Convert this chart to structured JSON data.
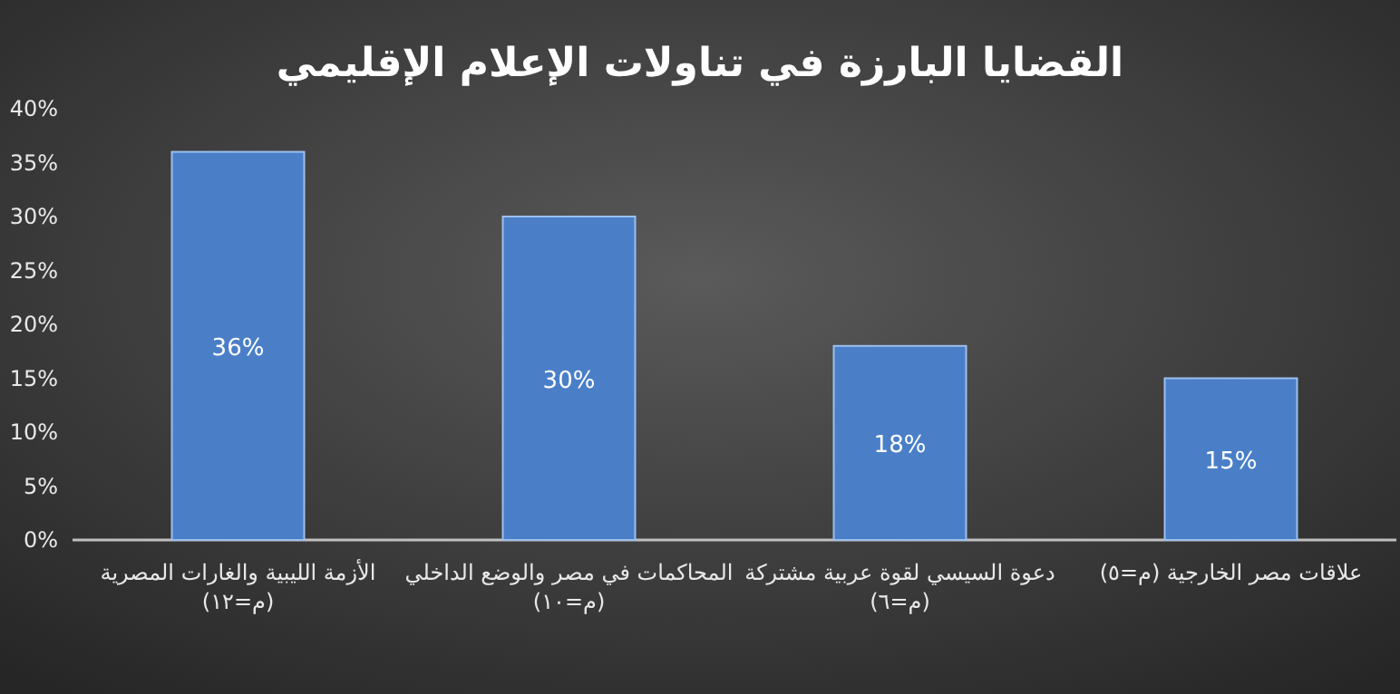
{
  "chart_data": {
    "type": "bar",
    "title": "القضايا البارزة في تناولات الإعلام الإقليمي",
    "categories": [
      "الأزمة الليبية والغارات المصرية\n(م=١٢)",
      "المحاكمات في مصر والوضع الداخلي\n(م=١٠)",
      "دعوة السيسي لقوة عربية مشتركة\n(م=٦)",
      "علاقات مصر الخارجية (م=٥)"
    ],
    "values": [
      36,
      30,
      18,
      15
    ],
    "value_labels": [
      "36%",
      "30%",
      "18%",
      "15%"
    ],
    "color": "#4a7fc8",
    "ylim": [
      0,
      40
    ],
    "yticks": [
      {
        "value": 0,
        "label": "0%"
      },
      {
        "value": 5,
        "label": "5%"
      },
      {
        "value": 10,
        "label": "10%"
      },
      {
        "value": 15,
        "label": "15%"
      },
      {
        "value": 20,
        "label": "20%"
      },
      {
        "value": 25,
        "label": "25%"
      },
      {
        "value": 30,
        "label": "30%"
      },
      {
        "value": 35,
        "label": "35%"
      },
      {
        "value": 40,
        "label": "40%"
      }
    ],
    "grid": false
  }
}
